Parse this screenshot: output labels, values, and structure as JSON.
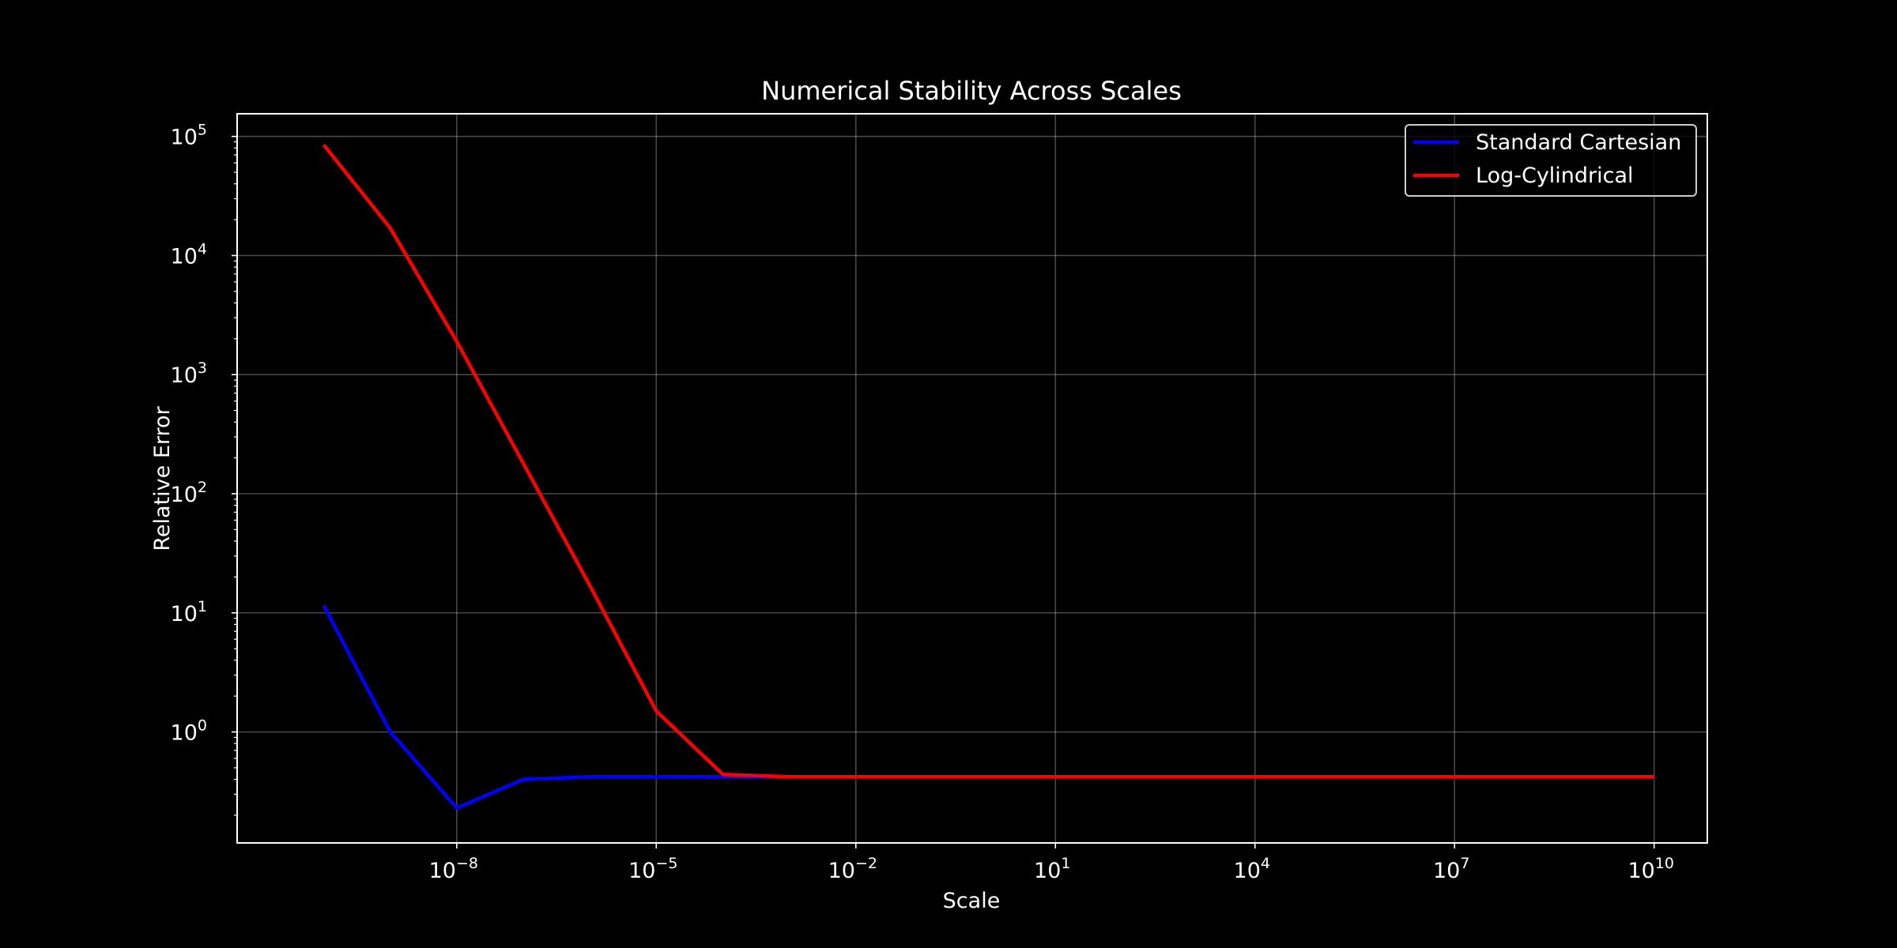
{
  "chart_data": {
    "type": "line",
    "title": "Numerical Stability Across Scales",
    "xlabel": "Scale",
    "ylabel": "Relative Error",
    "x_scale": "log",
    "y_scale": "log",
    "xlim": [
      5e-12,
      63000000000.0
    ],
    "ylim": [
      0.117,
      155000
    ],
    "grid": true,
    "legend_position": "top-right",
    "x_ticks": [
      {
        "value": 1e-08,
        "base": "10",
        "exp": "−8"
      },
      {
        "value": 1e-05,
        "base": "10",
        "exp": "−5"
      },
      {
        "value": 0.01,
        "base": "10",
        "exp": "−2"
      },
      {
        "value": 10.0,
        "base": "10",
        "exp": "1"
      },
      {
        "value": 10000.0,
        "base": "10",
        "exp": "4"
      },
      {
        "value": 10000000.0,
        "base": "10",
        "exp": "7"
      },
      {
        "value": 10000000000.0,
        "base": "10",
        "exp": "10"
      }
    ],
    "y_ticks": [
      {
        "value": 1,
        "base": "10",
        "exp": "0"
      },
      {
        "value": 10,
        "base": "10",
        "exp": "1"
      },
      {
        "value": 100,
        "base": "10",
        "exp": "2"
      },
      {
        "value": 1000,
        "base": "10",
        "exp": "3"
      },
      {
        "value": 10000,
        "base": "10",
        "exp": "4"
      },
      {
        "value": 100000,
        "base": "10",
        "exp": "5"
      }
    ],
    "x": [
      1e-10,
      1e-09,
      1e-08,
      1e-07,
      1e-06,
      1e-05,
      0.0001,
      0.001,
      0.01,
      0.1,
      1,
      10,
      100,
      1000,
      10000,
      100000,
      1000000,
      10000000,
      100000000,
      1000000000,
      10000000000
    ],
    "series": [
      {
        "name": "Standard Cartesian",
        "color": "#0000ff",
        "values": [
          11.5,
          1.0,
          0.23,
          0.4,
          0.42,
          0.42,
          0.42,
          0.42,
          0.42,
          0.42,
          0.42,
          0.42,
          0.42,
          0.42,
          0.42,
          0.42,
          0.42,
          0.42,
          0.42,
          0.42,
          0.42
        ]
      },
      {
        "name": "Log-Cylindrical",
        "color": "#ff0000",
        "values": [
          85000,
          17000,
          1900,
          180,
          17,
          1.5,
          0.44,
          0.42,
          0.42,
          0.42,
          0.42,
          0.42,
          0.42,
          0.42,
          0.42,
          0.42,
          0.42,
          0.42,
          0.42,
          0.42,
          0.42
        ]
      }
    ]
  }
}
